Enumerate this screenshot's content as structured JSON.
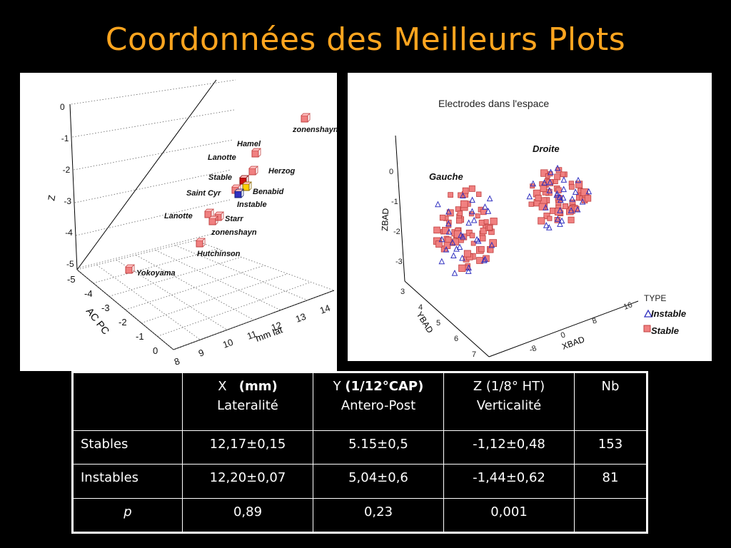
{
  "title": "Coordonnées des Meilleurs Plots",
  "colors": {
    "title": "#ffa51f",
    "stable": "#f08080",
    "instable": "#3030c0",
    "stable_sel": "#cc1010",
    "instable_sel": "#ffd000"
  },
  "chart_data": [
    {
      "type": "scatter",
      "title": "",
      "axes": {
        "z": {
          "label": "Z",
          "ticks": [
            "0",
            "-1",
            "-2",
            "-3",
            "-4",
            "-5"
          ]
        },
        "ac_pc": {
          "label": "AC PC",
          "ticks": [
            "-5",
            "-4",
            "-3",
            "-2",
            "-1",
            "0"
          ]
        },
        "lat": {
          "label": "mm lat",
          "ticks": [
            "8",
            "9",
            "10",
            "11",
            "12",
            "13",
            "14"
          ]
        }
      },
      "grid": true,
      "points": [
        {
          "label": "zonenshayn",
          "type": "stable"
        },
        {
          "label": "Hamel",
          "type": "stable"
        },
        {
          "label": "Lanotte",
          "type": "stable"
        },
        {
          "label": "Herzog",
          "type": "stable"
        },
        {
          "label": "Stable",
          "type": "stable"
        },
        {
          "label": "Benabid",
          "type": "stable"
        },
        {
          "label": "Saint Cyr",
          "type": "stable"
        },
        {
          "label": "Instable",
          "type": "instable"
        },
        {
          "label": "Lanotte",
          "type": "stable"
        },
        {
          "label": "Starr",
          "type": "stable"
        },
        {
          "label": "zonenshayn",
          "type": "stable"
        },
        {
          "label": "Hutchinson",
          "type": "stable"
        },
        {
          "label": "Yokoyama",
          "type": "stable"
        }
      ]
    },
    {
      "type": "scatter",
      "title": "Electrodes dans l'espace",
      "axes": {
        "zbad": {
          "label": "ZBAD",
          "ticks": [
            "0",
            "-1",
            "-2",
            "-3"
          ]
        },
        "ybad": {
          "label": "YBAD",
          "ticks": [
            "3",
            "4",
            "5",
            "6",
            "7"
          ]
        },
        "xbad": {
          "label": "XBAD",
          "ticks": [
            "-8",
            "0",
            "8",
            "16"
          ]
        }
      },
      "groups": [
        {
          "label": "Gauche"
        },
        {
          "label": "Droite"
        }
      ],
      "legend": {
        "title": "TYPE",
        "placement": "right",
        "entries": [
          "Instable",
          "Stable"
        ]
      }
    }
  ],
  "table": {
    "headers": [
      {
        "line1_a": "X",
        "line1_b": "(mm)",
        "line2": "Lateralité"
      },
      {
        "line1_a": "Y",
        "line1_b": "(1/12°CAP)",
        "line2": "Antero-Post"
      },
      {
        "line1_a": "Z (1/8° HT)",
        "line1_b": "",
        "line2": "Verticalité"
      },
      {
        "line1_a": "Nb",
        "line1_b": "",
        "line2": ""
      }
    ],
    "rows": [
      {
        "label": "Stables",
        "x": "12,17±0,15",
        "y": "5.15±0,5",
        "z": "-1,12±0,48",
        "nb": "153"
      },
      {
        "label": "Instables",
        "x": "12,20±0,07",
        "y": "5,04±0,6",
        "z": "-1,44±0,62",
        "nb": "81"
      },
      {
        "label": "p",
        "x": "0,89",
        "y": "0,23",
        "z": "0,001",
        "nb": ""
      }
    ]
  }
}
